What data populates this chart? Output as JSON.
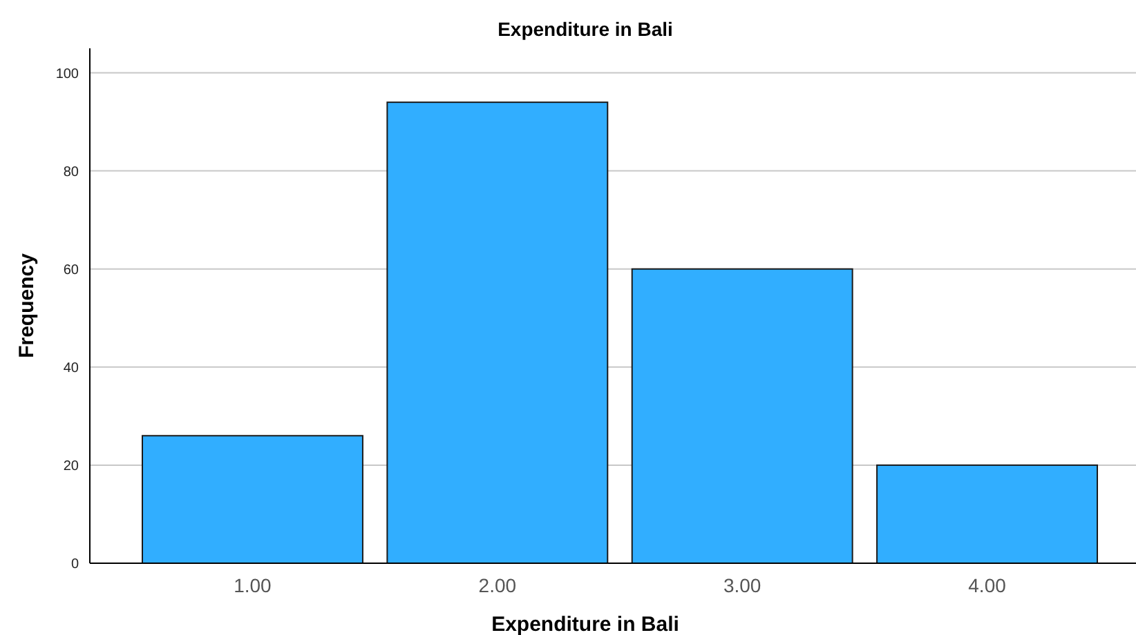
{
  "chart_data": {
    "type": "bar",
    "title": "Expenditure in Bali",
    "xlabel": "Expenditure in Bali",
    "ylabel": "Frequency",
    "categories": [
      "1.00",
      "2.00",
      "3.00",
      "4.00"
    ],
    "values": [
      26,
      94,
      60,
      20
    ],
    "color": "#31aeff",
    "ylim": [
      0,
      105
    ],
    "yticks": [
      0,
      20,
      40,
      60,
      80,
      100
    ],
    "grid": "y"
  }
}
